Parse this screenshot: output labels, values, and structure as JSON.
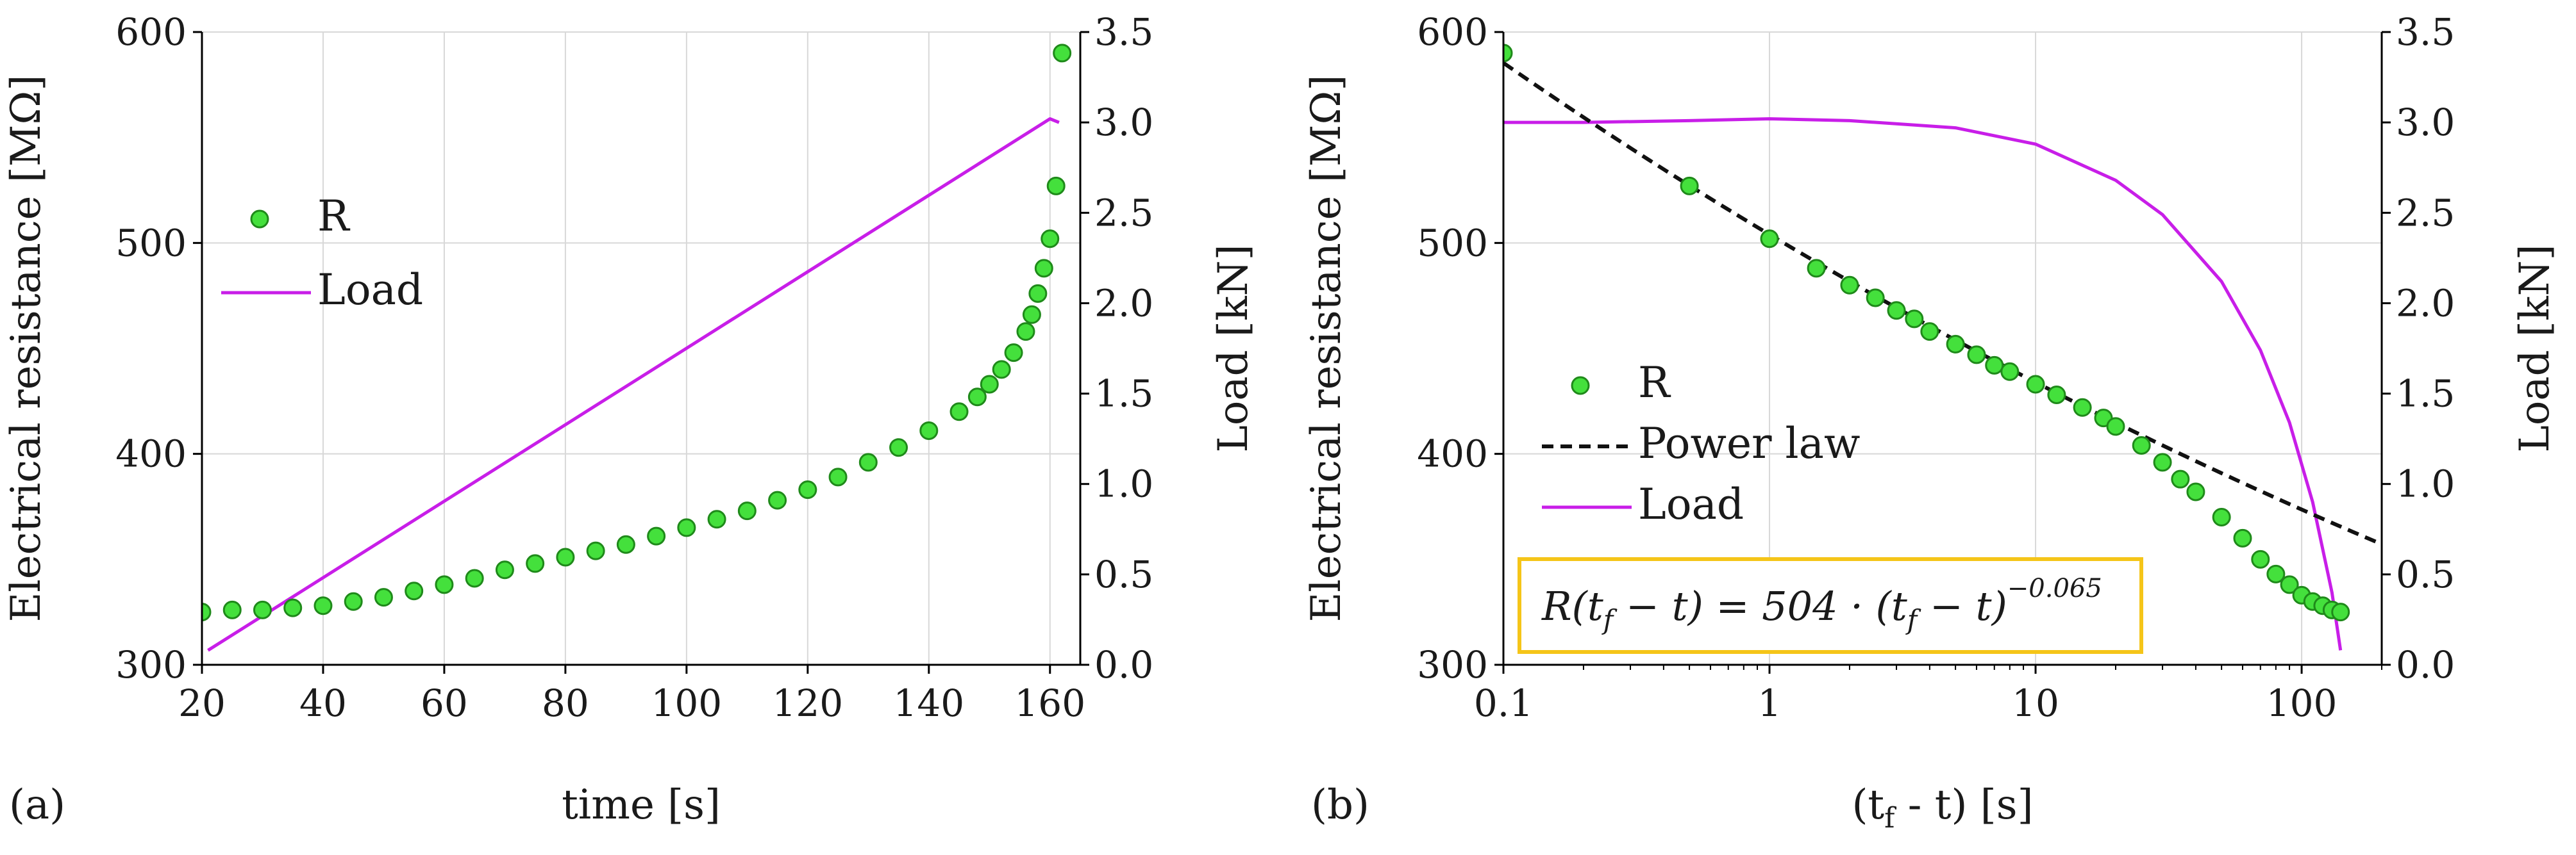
{
  "colors": {
    "marker_fill": "#44e03c",
    "marker_edge": "#1f8a1a",
    "load_line": "#c81ee8",
    "power_law": "#111111",
    "grid": "#d8d8d8",
    "axis": "#000000",
    "formula_box": "#f5c518"
  },
  "chart_data": [
    {
      "type": "scatter",
      "panel_label": "(a)",
      "xlabel": "time [s]",
      "ylabel": "Electrical resistance [MΩ]",
      "y2label": "Load [kN]",
      "xlim": [
        20,
        165
      ],
      "ylim": [
        300,
        600
      ],
      "y2lim": [
        0,
        3.5
      ],
      "xticks": [
        "20",
        "40",
        "60",
        "80",
        "100",
        "120",
        "140",
        "160"
      ],
      "yticks": [
        "300",
        "400",
        "500",
        "600"
      ],
      "y2ticks": [
        "0.0",
        "0.5",
        "1.0",
        "1.5",
        "2.0",
        "2.5",
        "3.0",
        "3.5"
      ],
      "grid": true,
      "legend": [
        "R",
        "Load"
      ],
      "legend_position": "upper-left",
      "series": [
        {
          "name": "R",
          "kind": "markers",
          "axis": "left",
          "x": [
            20,
            25,
            30,
            35,
            40,
            45,
            50,
            55,
            60,
            65,
            70,
            75,
            80,
            85,
            90,
            95,
            100,
            105,
            110,
            115,
            120,
            125,
            130,
            135,
            140,
            145,
            148,
            150,
            152,
            154,
            156,
            157,
            158,
            159,
            160,
            161,
            162
          ],
          "values": [
            325,
            326,
            326,
            327,
            328,
            330,
            332,
            335,
            338,
            341,
            345,
            348,
            351,
            354,
            357,
            361,
            365,
            369,
            373,
            378,
            383,
            389,
            396,
            403,
            411,
            420,
            427,
            433,
            440,
            448,
            458,
            466,
            476,
            488,
            502,
            527,
            590
          ]
        },
        {
          "name": "Load",
          "kind": "line",
          "axis": "right",
          "x": [
            21,
            160,
            161.5
          ],
          "values": [
            0.08,
            3.02,
            3.0
          ]
        }
      ]
    },
    {
      "type": "scatter",
      "panel_label": "(b)",
      "xlabel": "(t",
      "xlabel_sub": "f",
      "xlabel_tail": " - t) [s]",
      "ylabel": "Electrical resistance [MΩ]",
      "y2label": "Load [kN]",
      "xscale": "log",
      "xlim": [
        0.1,
        200
      ],
      "ylim": [
        300,
        600
      ],
      "y2lim": [
        0,
        3.5
      ],
      "xticks": [
        "0.1",
        "1",
        "10",
        "100"
      ],
      "yticks": [
        "300",
        "400",
        "500",
        "600"
      ],
      "y2ticks": [
        "0.0",
        "0.5",
        "1.0",
        "1.5",
        "2.0",
        "2.5",
        "3.0",
        "3.5"
      ],
      "grid": true,
      "legend": [
        "R",
        "Power law",
        "Load"
      ],
      "legend_position": "center-left",
      "formula": {
        "lhs": "R(t",
        "lhs_sub": "f",
        "mid": " − t) = 504 · (t",
        "rhs_sub": "f",
        "end": " − t)",
        "exponent": "−0.065"
      },
      "series": [
        {
          "name": "R",
          "kind": "markers",
          "axis": "left",
          "x": [
            0.1,
            0.5,
            1.0,
            1.5,
            2.0,
            2.5,
            3.0,
            3.5,
            4.0,
            5.0,
            6.0,
            7.0,
            8.0,
            10,
            12,
            15,
            18,
            20,
            25,
            30,
            35,
            40,
            50,
            60,
            70,
            80,
            90,
            100,
            110,
            120,
            130,
            140
          ],
          "values": [
            590,
            527,
            502,
            488,
            480,
            474,
            468,
            464,
            458,
            452,
            447,
            442,
            439,
            433,
            428,
            422,
            417,
            413,
            404,
            396,
            388,
            382,
            370,
            360,
            350,
            343,
            338,
            333,
            330,
            328,
            326,
            325
          ]
        },
        {
          "name": "Power law",
          "kind": "dashed-line",
          "axis": "left",
          "coefficient": 504,
          "exponent": -0.065,
          "x_range": [
            0.1,
            200
          ]
        },
        {
          "name": "Load",
          "kind": "line",
          "axis": "right",
          "x": [
            0.1,
            0.2,
            0.5,
            1,
            2,
            5,
            10,
            20,
            30,
            50,
            70,
            90,
            110,
            130,
            140
          ],
          "values": [
            3.0,
            3.0,
            3.01,
            3.02,
            3.01,
            2.97,
            2.88,
            2.68,
            2.49,
            2.12,
            1.74,
            1.34,
            0.9,
            0.4,
            0.08
          ]
        }
      ]
    }
  ]
}
